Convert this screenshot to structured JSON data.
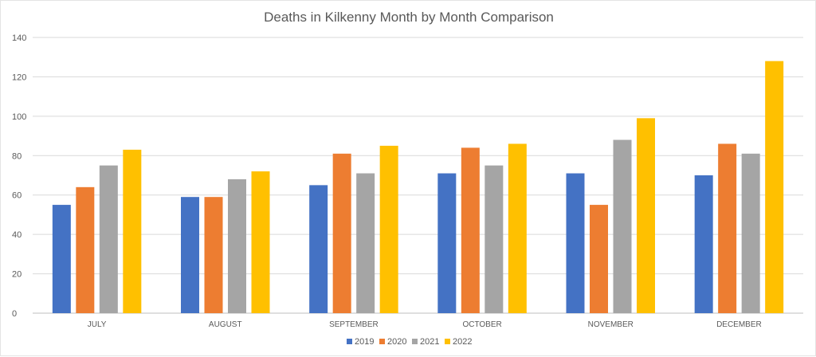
{
  "chart_data": {
    "type": "bar",
    "title": "Deaths in Kilkenny Month by Month Comparison",
    "xlabel": "",
    "ylabel": "",
    "categories": [
      "JULY",
      "AUGUST",
      "SEPTEMBER",
      "OCTOBER",
      "NOVEMBER",
      "DECEMBER"
    ],
    "ylim": [
      0,
      140
    ],
    "yticks": [
      0,
      20,
      40,
      60,
      80,
      100,
      120,
      140
    ],
    "grid": true,
    "legend_position": "bottom",
    "series": [
      {
        "name": "2019",
        "color": "#4472C4",
        "values": [
          55,
          59,
          65,
          71,
          71,
          70
        ]
      },
      {
        "name": "2020",
        "color": "#ED7D31",
        "values": [
          64,
          59,
          81,
          84,
          55,
          86
        ]
      },
      {
        "name": "2021",
        "color": "#A5A5A5",
        "values": [
          75,
          68,
          71,
          75,
          88,
          81
        ]
      },
      {
        "name": "2022",
        "color": "#FFC000",
        "values": [
          83,
          72,
          85,
          86,
          99,
          128
        ]
      }
    ]
  }
}
